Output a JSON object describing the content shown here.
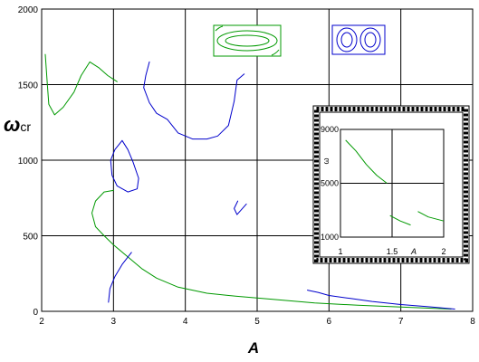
{
  "chart_data": {
    "type": "line",
    "xlabel": "A",
    "ylabel_main": "ω",
    "ylabel_sub": "cr",
    "xlim": [
      2,
      8
    ],
    "ylim": [
      0,
      2000
    ],
    "x_ticks": [
      "2",
      "3",
      "4",
      "5",
      "6",
      "7",
      "8"
    ],
    "y_ticks": [
      "0",
      "500",
      "1000",
      "1500",
      "2000"
    ],
    "grid": true,
    "colors": {
      "green": "#009900",
      "blue": "#0000cc",
      "axis": "#000000"
    },
    "series": [
      {
        "color": "green",
        "points": [
          [
            2.05,
            1700
          ],
          [
            2.08,
            1500
          ],
          [
            2.1,
            1370
          ],
          [
            2.18,
            1300
          ],
          [
            2.3,
            1350
          ],
          [
            2.45,
            1450
          ],
          [
            2.55,
            1560
          ],
          [
            2.67,
            1650
          ],
          [
            2.8,
            1610
          ],
          [
            2.92,
            1560
          ],
          [
            3.05,
            1520
          ]
        ]
      },
      {
        "color": "green",
        "points": [
          [
            3.0,
            800
          ],
          [
            2.87,
            790
          ],
          [
            2.75,
            730
          ],
          [
            2.7,
            650
          ],
          [
            2.75,
            560
          ],
          [
            2.87,
            500
          ],
          [
            3.0,
            440
          ],
          [
            3.2,
            360
          ],
          [
            3.4,
            280
          ],
          [
            3.6,
            220
          ],
          [
            3.9,
            160
          ],
          [
            4.3,
            120
          ],
          [
            4.7,
            100
          ],
          [
            5.2,
            80
          ],
          [
            5.8,
            55
          ],
          [
            6.4,
            40
          ],
          [
            7.0,
            28
          ],
          [
            7.7,
            15
          ]
        ]
      },
      {
        "color": "blue",
        "points": [
          [
            3.5,
            1650
          ],
          [
            3.45,
            1560
          ],
          [
            3.42,
            1480
          ],
          [
            3.5,
            1380
          ],
          [
            3.6,
            1310
          ],
          [
            3.75,
            1270
          ],
          [
            3.9,
            1180
          ],
          [
            4.1,
            1140
          ],
          [
            4.3,
            1140
          ],
          [
            4.45,
            1160
          ],
          [
            4.6,
            1230
          ],
          [
            4.68,
            1390
          ],
          [
            4.72,
            1530
          ],
          [
            4.82,
            1570
          ]
        ]
      },
      {
        "color": "blue",
        "points": [
          [
            3.12,
            1130
          ],
          [
            3.2,
            1070
          ],
          [
            3.27,
            990
          ],
          [
            3.35,
            880
          ],
          [
            3.33,
            810
          ],
          [
            3.2,
            790
          ],
          [
            3.05,
            830
          ],
          [
            2.98,
            900
          ],
          [
            2.96,
            1000
          ],
          [
            3.02,
            1070
          ],
          [
            3.12,
            1130
          ]
        ]
      },
      {
        "color": "blue",
        "points": [
          [
            2.93,
            60
          ],
          [
            2.95,
            150
          ],
          [
            3.02,
            230
          ],
          [
            3.12,
            310
          ],
          [
            3.25,
            390
          ]
        ]
      },
      {
        "color": "blue",
        "points": [
          [
            4.73,
            730
          ],
          [
            4.68,
            680
          ],
          [
            4.72,
            640
          ],
          [
            4.85,
            710
          ]
        ]
      },
      {
        "color": "blue",
        "points": [
          [
            5.7,
            140
          ],
          [
            5.85,
            125
          ],
          [
            6.0,
            105
          ],
          [
            6.3,
            85
          ],
          [
            6.6,
            65
          ],
          [
            7.0,
            45
          ],
          [
            7.4,
            30
          ],
          [
            7.75,
            15
          ]
        ]
      }
    ],
    "legend_icons": [
      {
        "name": "green-rectangle-ellipse-icon",
        "color": "#009900"
      },
      {
        "name": "blue-rectangle-double-ellipse-icon",
        "color": "#0000cc"
      }
    ],
    "inset": {
      "type": "line",
      "xlim": [
        1,
        2
      ],
      "ylim": [
        1000,
        9000
      ],
      "x_ticks": [
        "1",
        "1.5",
        "2"
      ],
      "y_ticks": [
        "1000",
        "5000",
        "9000"
      ],
      "xlabel": "A",
      "ylabel": "ω",
      "series": [
        {
          "color": "green",
          "points": [
            [
              1.05,
              8200
            ],
            [
              1.15,
              7400
            ],
            [
              1.25,
              6400
            ],
            [
              1.35,
              5600
            ],
            [
              1.45,
              5000
            ]
          ]
        },
        {
          "color": "green",
          "points": [
            [
              1.48,
              2600
            ],
            [
              1.58,
              2200
            ],
            [
              1.68,
              1900
            ]
          ]
        },
        {
          "color": "green",
          "points": [
            [
              1.75,
              2900
            ],
            [
              1.85,
              2500
            ],
            [
              1.95,
              2300
            ],
            [
              2.0,
              2200
            ]
          ]
        }
      ]
    }
  }
}
